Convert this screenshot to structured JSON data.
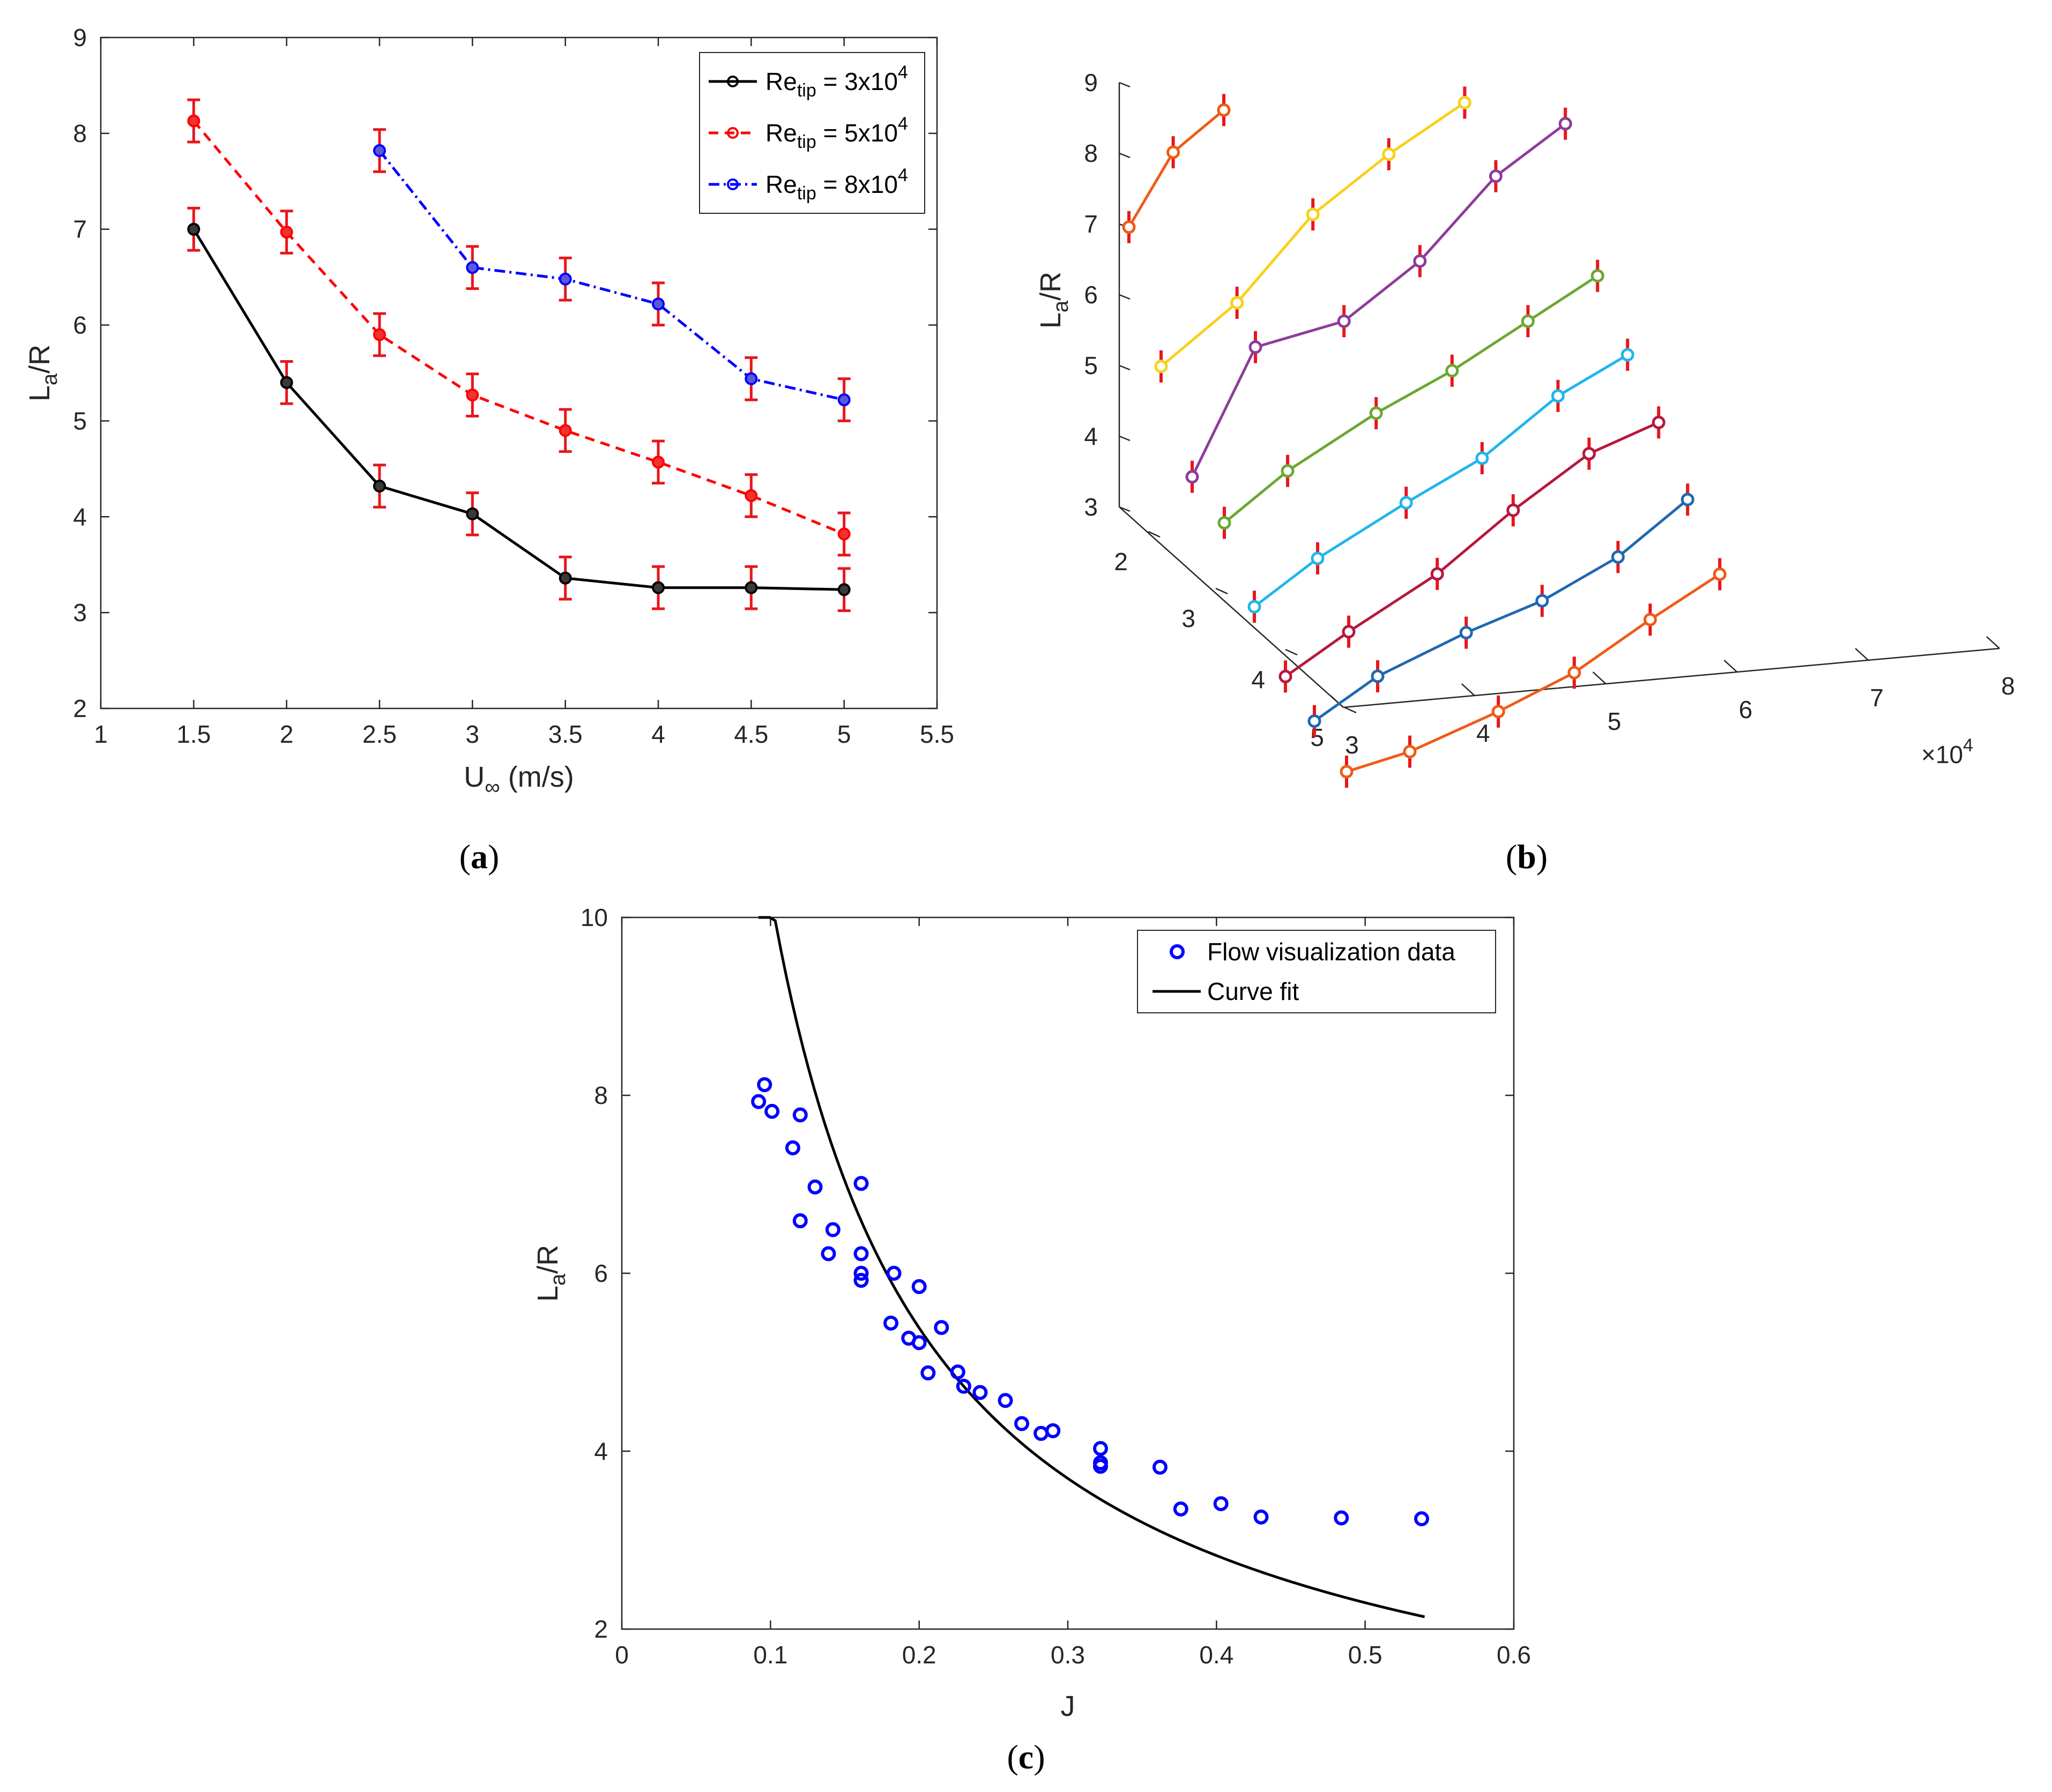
{
  "chart_data": [
    {
      "id": "a",
      "type": "line",
      "caption_letter": "a",
      "xlabel_main": "U",
      "xlabel_sub": "∞",
      "xlabel_unit": " (m/s)",
      "ylabel_main": "L",
      "ylabel_sub": "a",
      "ylabel_rest": "/R",
      "xlim": [
        1,
        5.5
      ],
      "ylim": [
        2,
        9
      ],
      "xticks": [
        1,
        1.5,
        2,
        2.5,
        3,
        3.5,
        4,
        4.5,
        5,
        5.5
      ],
      "xtick_labels": [
        "1",
        "1.5",
        "2",
        "2.5",
        "3",
        "3.5",
        "4",
        "4.5",
        "5",
        "5.5"
      ],
      "yticks": [
        2,
        3,
        4,
        5,
        6,
        7,
        8,
        9
      ],
      "ytick_labels": [
        "2",
        "3",
        "4",
        "5",
        "6",
        "7",
        "8",
        "9"
      ],
      "legend_position": "top-right",
      "series": [
        {
          "name": "Re_tip = 3x10^4",
          "legend_main": "Re",
          "legend_sub": "tip",
          "legend_eq": " = 3x10",
          "legend_sup": "4",
          "color": "#000000",
          "style": "solid",
          "x": [
            1.5,
            2,
            2.5,
            3,
            3.5,
            4,
            4.5,
            5
          ],
          "y": [
            7.0,
            5.4,
            4.32,
            4.03,
            3.36,
            3.26,
            3.26,
            3.24
          ],
          "err": [
            0.22,
            0.22,
            0.22,
            0.22,
            0.22,
            0.22,
            0.22,
            0.22
          ]
        },
        {
          "name": "Re_tip = 5x10^4",
          "legend_main": "Re",
          "legend_sub": "tip",
          "legend_eq": " = 5x10",
          "legend_sup": "4",
          "color": "#ff0000",
          "style": "dashed",
          "x": [
            1.5,
            2,
            2.5,
            3,
            3.5,
            4,
            4.5,
            5
          ],
          "y": [
            8.13,
            6.97,
            5.9,
            5.27,
            4.9,
            4.57,
            4.22,
            3.82
          ],
          "err": [
            0.22,
            0.22,
            0.22,
            0.22,
            0.22,
            0.22,
            0.22,
            0.22
          ]
        },
        {
          "name": "Re_tip = 8x10^4",
          "legend_main": "Re",
          "legend_sub": "tip",
          "legend_eq": " = 8x10",
          "legend_sup": "4",
          "color": "#0000ff",
          "style": "dashdot",
          "x": [
            2.5,
            3,
            3.5,
            4,
            4.5,
            5
          ],
          "y": [
            7.82,
            6.6,
            6.48,
            6.22,
            5.44,
            5.22
          ],
          "err": [
            0.22,
            0.22,
            0.22,
            0.22,
            0.22,
            0.22
          ]
        }
      ],
      "errorbar_color": "#e8161c"
    },
    {
      "id": "b",
      "type": "line",
      "caption_letter": "b",
      "ylabel_main": "L",
      "ylabel_sub": "a",
      "ylabel_rest": "/R",
      "x_axis_values": [
        3,
        4,
        5,
        6,
        7,
        8
      ],
      "x_tick_labels": [
        "3",
        "4",
        "5",
        "6",
        "7",
        "8"
      ],
      "x_multiplier_base": "×10",
      "x_multiplier_exp": "4",
      "y_axis_values": [
        5,
        4,
        3,
        2
      ],
      "y_tick_labels": [
        "5",
        "4",
        "3",
        "2"
      ],
      "z_axis_values": [
        3,
        4,
        5,
        6,
        7,
        8,
        9
      ],
      "z_tick_labels": [
        "3",
        "4",
        "5",
        "6",
        "7",
        "8",
        "9"
      ],
      "errorbar_color": "#e8161c",
      "series": [
        {
          "color": "#f05a16",
          "depth": 1.4,
          "x": [
            3.0,
            3.35,
            3.75
          ],
          "z": [
            6.85,
            7.85,
            8.38
          ]
        },
        {
          "color": "#f7d11b",
          "depth": 1.4,
          "x": [
            3.0,
            3.6,
            4.2,
            4.8,
            5.4
          ],
          "z": [
            4.85,
            5.65,
            6.8,
            7.55,
            8.18
          ]
        },
        {
          "color": "#8e3b9a",
          "depth": 1.4,
          "x": [
            3.0,
            3.5,
            4.2,
            4.8,
            5.4,
            5.95
          ],
          "z": [
            3.35,
            5.1,
            5.35,
            6.1,
            7.2,
            7.85
          ]
        },
        {
          "color": "#6aa832",
          "depth": 1.4,
          "x": [
            3.0,
            3.5,
            4.2,
            4.8,
            5.4,
            5.95
          ],
          "z": [
            3.2,
            3.85,
            4.55,
            5.05,
            5.65,
            6.2
          ]
        },
        {
          "color": "#1fb6ec",
          "depth": 1.4,
          "x": [
            3.0,
            3.5,
            4.2,
            4.8,
            5.4,
            5.95
          ],
          "z": [
            2.65,
            3.25,
            3.92,
            4.45,
            5.23,
            5.72
          ]
        },
        {
          "color": "#b6183c",
          "depth": 1.4,
          "x": [
            3.0,
            3.5,
            4.2,
            4.8,
            5.4,
            5.95
          ],
          "z": [
            2.3,
            2.85,
            3.55,
            4.35,
            5.05,
            5.4
          ]
        },
        {
          "color": "#1f68b0",
          "depth": 1.4,
          "x": [
            3.0,
            3.5,
            4.2,
            4.8,
            5.4,
            5.95
          ],
          "z": [
            2.2,
            2.75,
            3.25,
            3.6,
            4.12,
            4.84
          ]
        },
        {
          "color": "#f05a16",
          "depth": 1.4,
          "x": [
            3.0,
            3.5,
            4.2,
            4.8,
            5.4,
            5.95
          ],
          "z": [
            2.0,
            2.2,
            2.65,
            3.1,
            3.75,
            4.3
          ]
        }
      ]
    },
    {
      "id": "c",
      "type": "scatter",
      "caption_letter": "c",
      "xlabel": "J",
      "ylabel_main": "L",
      "ylabel_sub": "a",
      "ylabel_rest": "/R",
      "xlim": [
        0,
        0.6
      ],
      "ylim": [
        2,
        10
      ],
      "xticks": [
        0,
        0.1,
        0.2,
        0.3,
        0.4,
        0.5,
        0.6
      ],
      "xtick_labels": [
        "0",
        "0.1",
        "0.2",
        "0.3",
        "0.4",
        "0.5",
        "0.6"
      ],
      "yticks": [
        2,
        4,
        6,
        8,
        10
      ],
      "ytick_labels": [
        "2",
        "4",
        "6",
        "8",
        "10"
      ],
      "legend_position": "top-right",
      "scatter": {
        "name": "Flow visualization data",
        "color": "#0000ff",
        "x": [
          0.092,
          0.096,
          0.101,
          0.12,
          0.115,
          0.13,
          0.12,
          0.142,
          0.139,
          0.161,
          0.161,
          0.161,
          0.161,
          0.183,
          0.2,
          0.181,
          0.193,
          0.2,
          0.215,
          0.206,
          0.226,
          0.23,
          0.241,
          0.258,
          0.269,
          0.282,
          0.29,
          0.322,
          0.322,
          0.322,
          0.362,
          0.376,
          0.403,
          0.43,
          0.484,
          0.538
        ],
        "y": [
          7.93,
          8.12,
          7.82,
          7.78,
          7.41,
          6.97,
          6.59,
          6.49,
          6.22,
          7.01,
          6.22,
          6.0,
          5.92,
          6.0,
          5.85,
          5.44,
          5.27,
          5.22,
          5.39,
          4.88,
          4.89,
          4.73,
          4.66,
          4.57,
          4.31,
          4.2,
          4.23,
          4.03,
          3.87,
          3.83,
          3.82,
          3.35,
          3.41,
          3.26,
          3.25,
          3.24
        ]
      },
      "curve": {
        "name": "Curve fit",
        "color": "#000000",
        "model": "a/J^b",
        "a": 1.2055,
        "b": 0.93,
        "x_range": [
          0.092,
          0.54
        ]
      }
    }
  ]
}
